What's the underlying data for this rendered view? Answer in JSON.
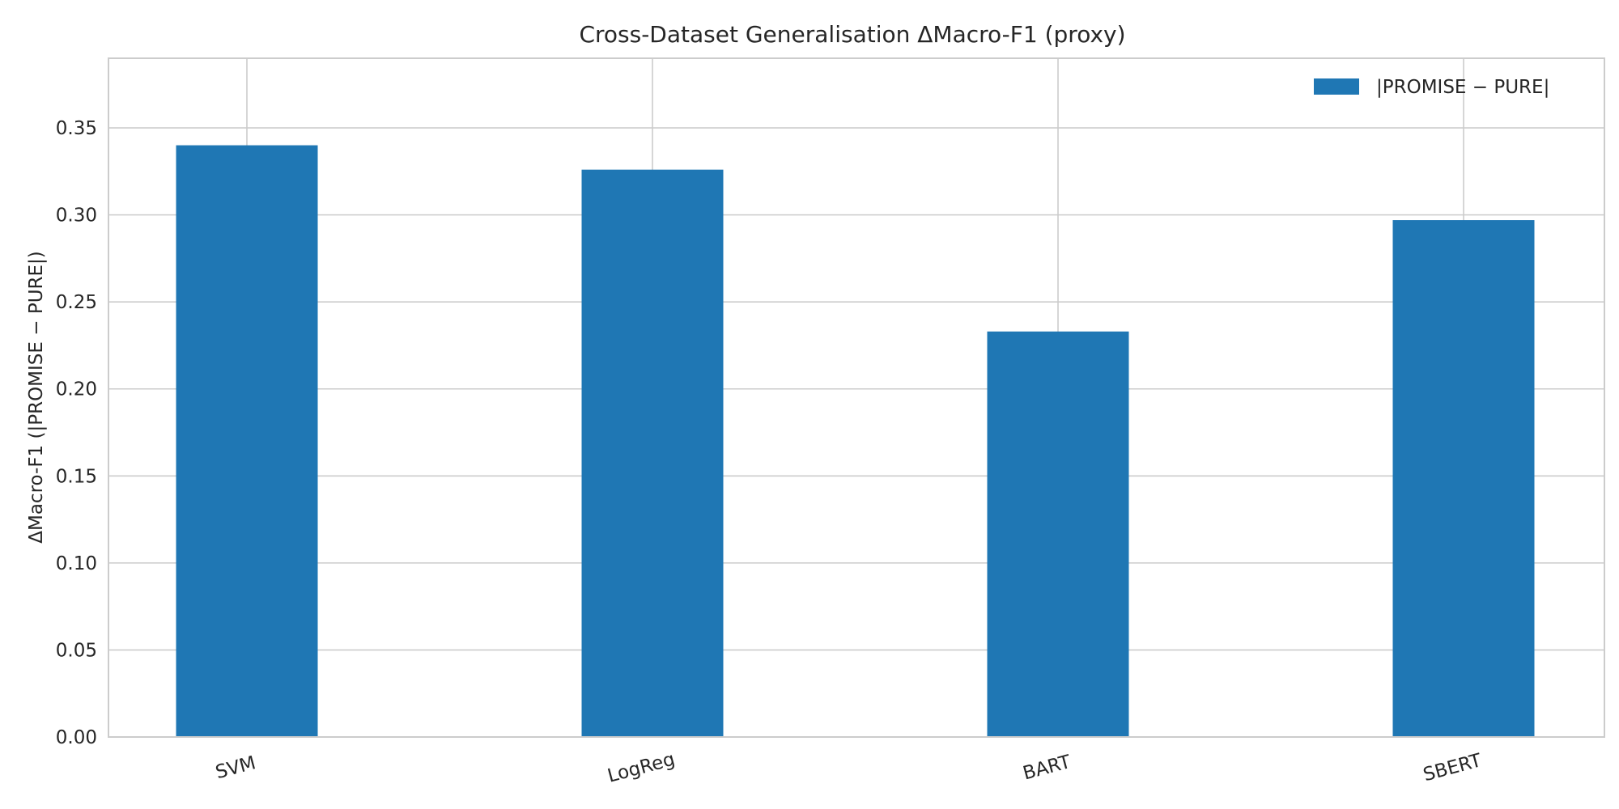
{
  "chart_data": {
    "type": "bar",
    "title": "Cross-Dataset Generalisation ΔMacro-F1 (proxy)",
    "xlabel": "",
    "ylabel": "ΔMacro-F1 (|PROMISE − PURE|)",
    "categories": [
      "SVM",
      "LogReg",
      "BART",
      "SBERT"
    ],
    "series": [
      {
        "name": "|PROMISE − PURE|",
        "values": [
          0.34,
          0.326,
          0.233,
          0.297
        ]
      }
    ],
    "ylim": [
      0,
      0.39
    ],
    "yticks": [
      "0.00",
      "0.05",
      "0.10",
      "0.15",
      "0.20",
      "0.25",
      "0.30",
      "0.35"
    ],
    "grid": true,
    "legend_position": "top-right",
    "colors": {
      "bar": "#1f77b4",
      "grid": "#cccccc",
      "axis": "#cccccc"
    }
  }
}
